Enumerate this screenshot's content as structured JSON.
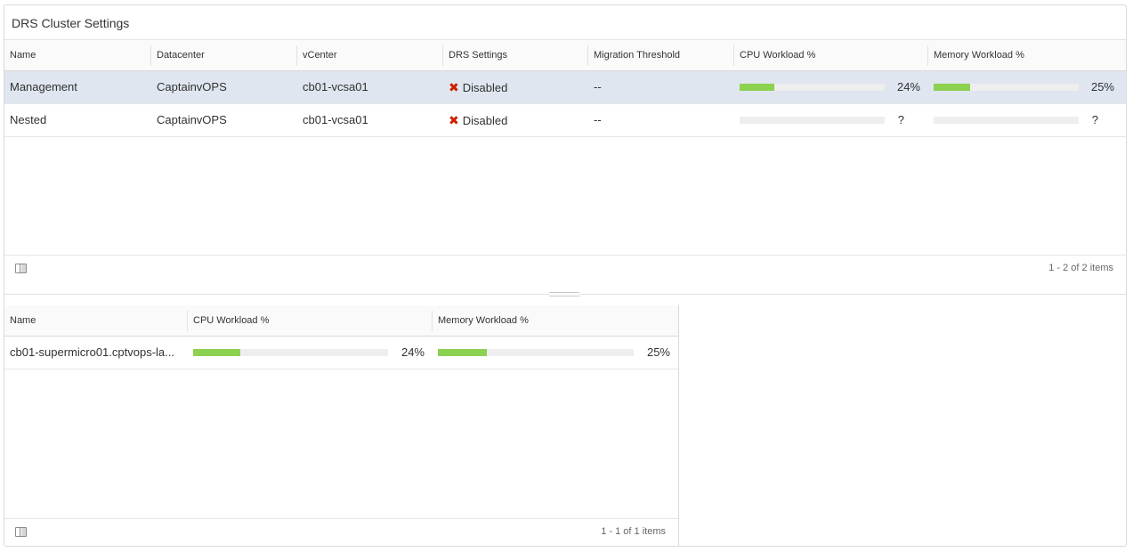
{
  "panel": {
    "title": "DRS Cluster Settings"
  },
  "clusters": {
    "columns": [
      "Name",
      "Datacenter",
      "vCenter",
      "DRS Settings",
      "Migration Threshold",
      "CPU Workload %",
      "Memory Workload %"
    ],
    "rows": [
      {
        "name": "Management",
        "datacenter": "CaptainvOPS",
        "vcenter": "cb01-vcsa01",
        "drs": "Disabled",
        "threshold": "--",
        "cpu_label": "24%",
        "cpu_fraction": 0.24,
        "mem_label": "25%",
        "mem_fraction": 0.25,
        "selected": true
      },
      {
        "name": "Nested",
        "datacenter": "CaptainvOPS",
        "vcenter": "cb01-vcsa01",
        "drs": "Disabled",
        "threshold": "--",
        "cpu_label": "?",
        "cpu_fraction": 0,
        "mem_label": "?",
        "mem_fraction": 0,
        "selected": false
      }
    ],
    "footer": "1 - 2 of 2 items"
  },
  "hosts": {
    "columns": [
      "Name",
      "CPU Workload %",
      "Memory Workload %"
    ],
    "rows": [
      {
        "name": "cb01-supermicro01.cptvops-la...",
        "cpu_label": "24%",
        "cpu_fraction": 0.24,
        "mem_label": "25%",
        "mem_fraction": 0.25
      }
    ],
    "footer": "1 - 1 of 1 items"
  },
  "colors": {
    "bar_fill": "#8cd150",
    "bar_track": "#eeeeee",
    "selected_row": "#dfe6ef",
    "status_error": "#c92100"
  },
  "icons": {
    "status": "close-x-icon",
    "column_toggle": "column-toggle-icon"
  }
}
